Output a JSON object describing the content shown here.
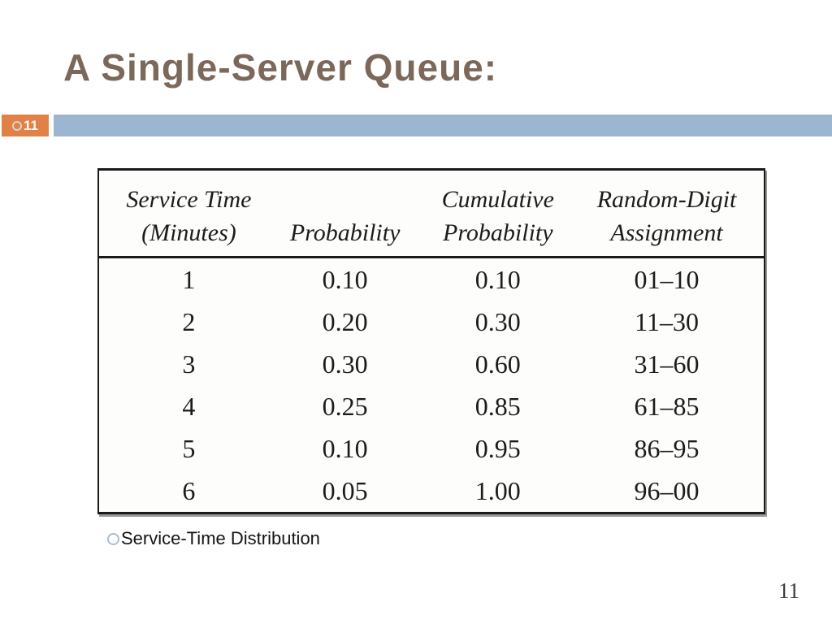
{
  "slide": {
    "title": "A Single-Server Queue:",
    "badge_number": "11",
    "caption": "Service-Time Distribution",
    "page_number": "11"
  },
  "colors": {
    "title_brown": "#7B685B",
    "badge_orange": "#E08147",
    "bar_blue": "#9CB6D2",
    "table_border": "#1A1A1A",
    "bullet_blue_gray": "#AABDD0",
    "page_number_gray": "#3E3E3E"
  },
  "icons": {
    "badge_circle": "circle-outline",
    "caption_bullet": "circle-outline"
  },
  "table": {
    "headers": [
      {
        "line1": "Service Time",
        "line2": "(Minutes)"
      },
      {
        "line1": "",
        "line2": "Probability"
      },
      {
        "line1": "Cumulative",
        "line2": "Probability"
      },
      {
        "line1": "Random-Digit",
        "line2": "Assignment"
      }
    ],
    "rows": [
      [
        "1",
        "0.10",
        "0.10",
        "01–10"
      ],
      [
        "2",
        "0.20",
        "0.30",
        "11–30"
      ],
      [
        "3",
        "0.30",
        "0.60",
        "31–60"
      ],
      [
        "4",
        "0.25",
        "0.85",
        "61–85"
      ],
      [
        "5",
        "0.10",
        "0.95",
        "86–95"
      ],
      [
        "6",
        "0.05",
        "1.00",
        "96–00"
      ]
    ]
  }
}
